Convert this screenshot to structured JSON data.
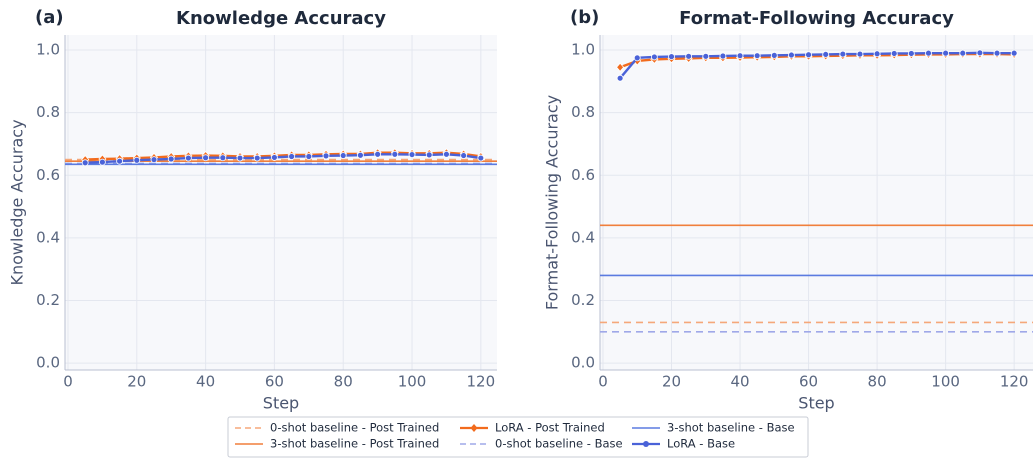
{
  "chart_data": [
    {
      "type": "line",
      "panel_label": "(a)",
      "title": "Knowledge Accuracy",
      "xlabel": "Step",
      "ylabel": "Knowledge Accuracy",
      "x": [
        5,
        10,
        15,
        20,
        25,
        30,
        35,
        40,
        45,
        50,
        55,
        60,
        65,
        70,
        75,
        80,
        85,
        90,
        95,
        100,
        105,
        110,
        115,
        120
      ],
      "xlim": [
        -0.87,
        124.7
      ],
      "xticks": [
        0,
        20,
        40,
        60,
        80,
        100,
        120
      ],
      "ylim": [
        -0.022,
        1.048
      ],
      "yticks": [
        {
          "value": 0,
          "label": "0.0"
        },
        0.2,
        0.4,
        0.6,
        0.8,
        {
          "value": 1,
          "label": "1.0"
        }
      ],
      "grid": true,
      "series": [
        {
          "name": "0-shot baseline - Post Trained",
          "color": "#f5a77a",
          "dash": true,
          "value": 0.65
        },
        {
          "name": "3-shot baseline - Post Trained",
          "color": "#f07f3c",
          "dash": false,
          "value": 0.645
        },
        {
          "name": "LoRA - Post Trained",
          "color": "#f26b1d",
          "dash": false,
          "marker": "diamond",
          "values": [
            0.65,
            0.652,
            0.653,
            0.655,
            0.657,
            0.66,
            0.662,
            0.663,
            0.662,
            0.66,
            0.66,
            0.662,
            0.665,
            0.665,
            0.667,
            0.668,
            0.668,
            0.672,
            0.672,
            0.67,
            0.67,
            0.672,
            0.668,
            0.66
          ]
        },
        {
          "name": "0-shot baseline - Base",
          "color": "#9fa8e8",
          "dash": true,
          "value": 0.638
        },
        {
          "name": "3-shot baseline - Base",
          "color": "#5b7be0",
          "dash": false,
          "value": 0.635
        },
        {
          "name": "LoRA - Base",
          "color": "#4a62d8",
          "dash": false,
          "marker": "circle",
          "values": [
            0.64,
            0.642,
            0.645,
            0.648,
            0.65,
            0.652,
            0.655,
            0.656,
            0.656,
            0.655,
            0.655,
            0.657,
            0.66,
            0.66,
            0.662,
            0.663,
            0.664,
            0.667,
            0.667,
            0.666,
            0.665,
            0.667,
            0.663,
            0.655
          ]
        }
      ]
    },
    {
      "type": "line",
      "panel_label": "(b)",
      "title": "Format-Following Accuracy",
      "xlabel": "Step",
      "ylabel": "Format-Following Accuracy",
      "x": [
        5,
        10,
        15,
        20,
        25,
        30,
        35,
        40,
        45,
        50,
        55,
        60,
        65,
        70,
        75,
        80,
        85,
        90,
        95,
        100,
        105,
        110,
        115,
        120
      ],
      "xlim": [
        -0.87,
        125.5
      ],
      "xticks": [
        0,
        20,
        40,
        60,
        80,
        100,
        120
      ],
      "ylim": [
        -0.022,
        1.048
      ],
      "yticks": [
        {
          "value": 0,
          "label": "0.0"
        },
        0.2,
        0.4,
        0.6,
        0.8,
        {
          "value": 1,
          "label": "1.0"
        }
      ],
      "grid": true,
      "series": [
        {
          "name": "0-shot baseline - Post Trained",
          "color": "#f5a77a",
          "dash": true,
          "value": 0.13
        },
        {
          "name": "3-shot baseline - Post Trained",
          "color": "#f07f3c",
          "dash": false,
          "value": 0.44
        },
        {
          "name": "LoRA - Post Trained",
          "color": "#f26b1d",
          "dash": false,
          "marker": "diamond",
          "values": [
            0.945,
            0.965,
            0.97,
            0.972,
            0.973,
            0.975,
            0.975,
            0.976,
            0.977,
            0.978,
            0.98,
            0.98,
            0.981,
            0.982,
            0.983,
            0.983,
            0.984,
            0.985,
            0.986,
            0.986,
            0.987,
            0.987,
            0.987,
            0.986
          ]
        },
        {
          "name": "0-shot baseline - Base",
          "color": "#9fa8e8",
          "dash": true,
          "value": 0.1
        },
        {
          "name": "3-shot baseline - Base",
          "color": "#5b7be0",
          "dash": false,
          "value": 0.28
        },
        {
          "name": "LoRA - Base",
          "color": "#4a62d8",
          "dash": false,
          "marker": "circle",
          "values": [
            0.91,
            0.975,
            0.978,
            0.979,
            0.98,
            0.98,
            0.981,
            0.982,
            0.982,
            0.983,
            0.984,
            0.985,
            0.986,
            0.987,
            0.987,
            0.988,
            0.989,
            0.989,
            0.99,
            0.99,
            0.99,
            0.991,
            0.99,
            0.99
          ]
        }
      ]
    }
  ]
}
